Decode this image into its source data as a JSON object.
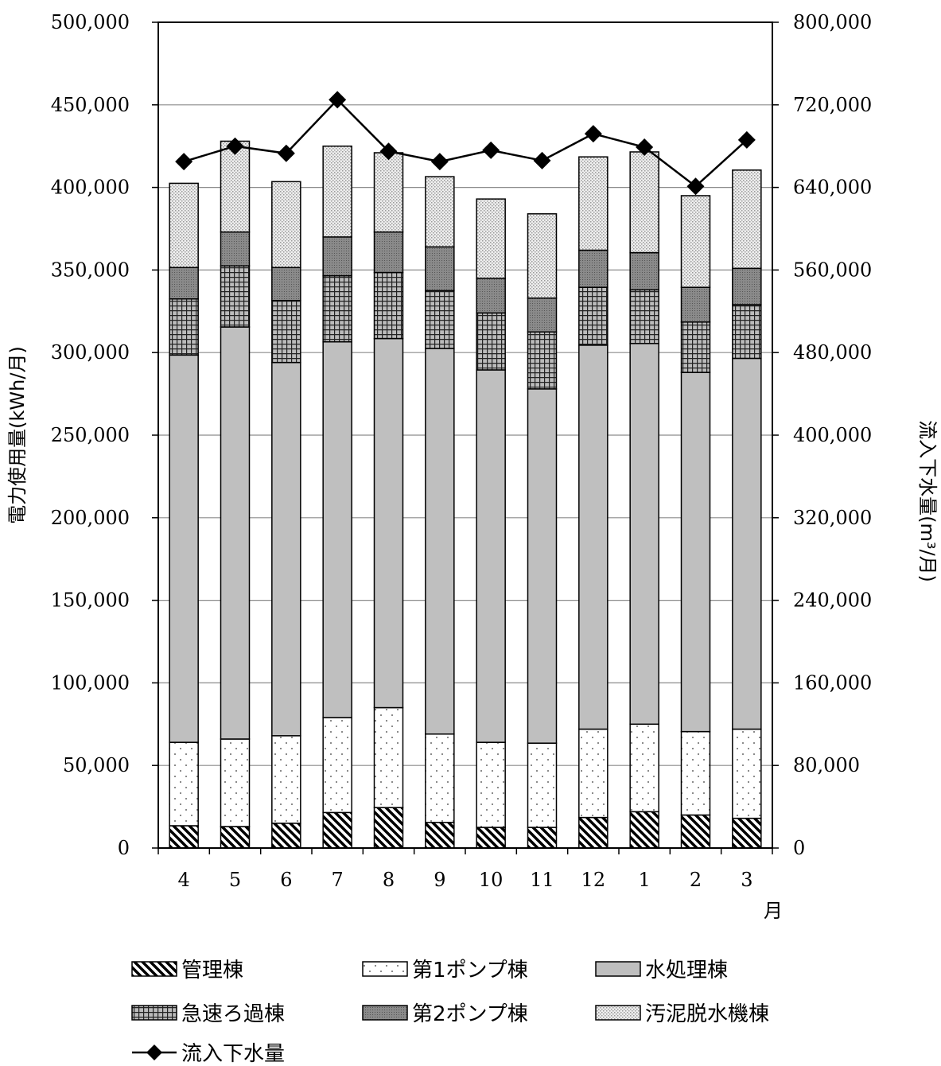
{
  "chart_data": {
    "type": "bar",
    "stacked": true,
    "categories": [
      "4",
      "5",
      "6",
      "7",
      "8",
      "9",
      "10",
      "11",
      "12",
      "1",
      "2",
      "3"
    ],
    "xlabel": "月",
    "ylabel": "電力使用量(kWh/月)",
    "ylabel_right": "流入下水量(m³/月)",
    "ylim": [
      0,
      500000
    ],
    "ylim_right": [
      0,
      800000
    ],
    "yticks": [
      "0",
      "50,000",
      "100,000",
      "150,000",
      "200,000",
      "250,000",
      "300,000",
      "350,000",
      "400,000",
      "450,000",
      "500,000"
    ],
    "yticks_right": [
      "0",
      "80,000",
      "160,000",
      "240,000",
      "320,000",
      "400,000",
      "480,000",
      "560,000",
      "640,000",
      "720,000",
      "800,000"
    ],
    "grid": true,
    "legend_position": "bottom",
    "series": [
      {
        "name": "管理棟",
        "pattern": "diagonal-hatch",
        "color": "#000000",
        "values": [
          13500,
          13000,
          15000,
          21500,
          24500,
          15500,
          12500,
          12500,
          18500,
          22000,
          20000,
          18000
        ]
      },
      {
        "name": "第1ポンプ棟",
        "pattern": "dots",
        "color": "#ffffff",
        "values": [
          50500,
          53000,
          53000,
          57500,
          60500,
          53500,
          51500,
          51000,
          53500,
          53000,
          50500,
          54000
        ]
      },
      {
        "name": "水処理棟",
        "pattern": "solid-gray",
        "color": "#bfbfbf",
        "values": [
          234500,
          249500,
          226000,
          227500,
          223500,
          233500,
          225500,
          214500,
          232500,
          230500,
          217500,
          224500
        ]
      },
      {
        "name": "急速ろ過棟",
        "pattern": "grid-hatch",
        "color": "#808080",
        "values": [
          34000,
          37000,
          37500,
          40000,
          40000,
          35000,
          34500,
          34500,
          35000,
          32500,
          30500,
          32500
        ]
      },
      {
        "name": "第2ポンプ棟",
        "pattern": "dark-gray",
        "color": "#808080",
        "values": [
          19000,
          20500,
          20000,
          23500,
          24500,
          26500,
          21000,
          20500,
          22500,
          22500,
          21000,
          22000
        ]
      },
      {
        "name": "汚泥脱水機棟",
        "pattern": "light-dots",
        "color": "#d9d9d9",
        "values": [
          51000,
          55000,
          52000,
          55000,
          48000,
          42500,
          48000,
          51000,
          56500,
          61000,
          55500,
          59500
        ]
      }
    ],
    "line_series": {
      "name": "流入下水量",
      "axis": "right",
      "marker": "diamond",
      "color": "#000000",
      "values": [
        665000,
        680000,
        673000,
        725000,
        675000,
        665000,
        676000,
        666000,
        692000,
        679000,
        641000,
        686000
      ]
    }
  }
}
